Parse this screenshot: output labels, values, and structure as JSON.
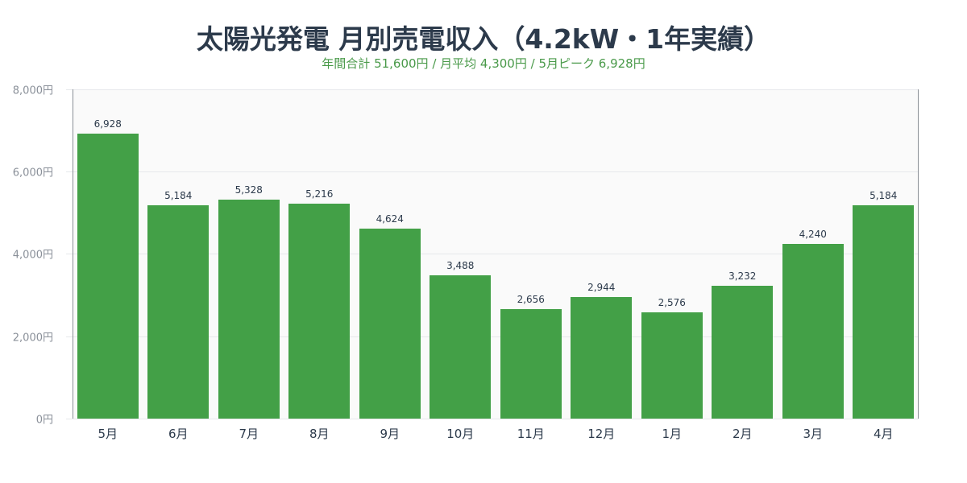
{
  "title": "太陽光発電 月別売電収入（4.2kW・1年実績）",
  "subtitle": "年間合計 51,600円 / 月平均 4,300円 / 5月ピーク 6,928円",
  "colors": {
    "bar": "#43a047",
    "title": "#2c3a4b",
    "subtitle": "#4a9a4a",
    "plot_bg": "#fafafa"
  },
  "y_ticks": [
    "8,000円",
    "6,000円",
    "4,000円",
    "2,000円",
    "0円"
  ],
  "bars": [
    {
      "label": "5月",
      "value": 6928,
      "value_label": "6,928"
    },
    {
      "label": "6月",
      "value": 5184,
      "value_label": "5,184"
    },
    {
      "label": "7月",
      "value": 5328,
      "value_label": "5,328"
    },
    {
      "label": "8月",
      "value": 5216,
      "value_label": "5,216"
    },
    {
      "label": "9月",
      "value": 4624,
      "value_label": "4,624"
    },
    {
      "label": "10月",
      "value": 3488,
      "value_label": "3,488"
    },
    {
      "label": "11月",
      "value": 2656,
      "value_label": "2,656"
    },
    {
      "label": "12月",
      "value": 2944,
      "value_label": "2,944"
    },
    {
      "label": "1月",
      "value": 2576,
      "value_label": "2,576"
    },
    {
      "label": "2月",
      "value": 3232,
      "value_label": "3,232"
    },
    {
      "label": "3月",
      "value": 4240,
      "value_label": "4,240"
    },
    {
      "label": "4月",
      "value": 5184,
      "value_label": "5,184"
    }
  ],
  "chart_data": {
    "type": "bar",
    "title": "太陽光発電 月別売電収入（4.2kW・1年実績）",
    "subtitle": "年間合計 51,600円 / 月平均 4,300円 / 5月ピーク 6,928円",
    "categories": [
      "5月",
      "6月",
      "7月",
      "8月",
      "9月",
      "10月",
      "11月",
      "12月",
      "1月",
      "2月",
      "3月",
      "4月"
    ],
    "values": [
      6928,
      5184,
      5328,
      5216,
      4624,
      3488,
      2656,
      2944,
      2576,
      3232,
      4240,
      5184
    ],
    "xlabel": "",
    "ylabel": "",
    "ylim": [
      0,
      8000
    ],
    "yticks": [
      0,
      2000,
      4000,
      6000,
      8000
    ],
    "ytick_labels": [
      "0円",
      "2,000円",
      "4,000円",
      "6,000円",
      "8,000円"
    ],
    "grid": true,
    "legend": null,
    "data_labels": true
  }
}
